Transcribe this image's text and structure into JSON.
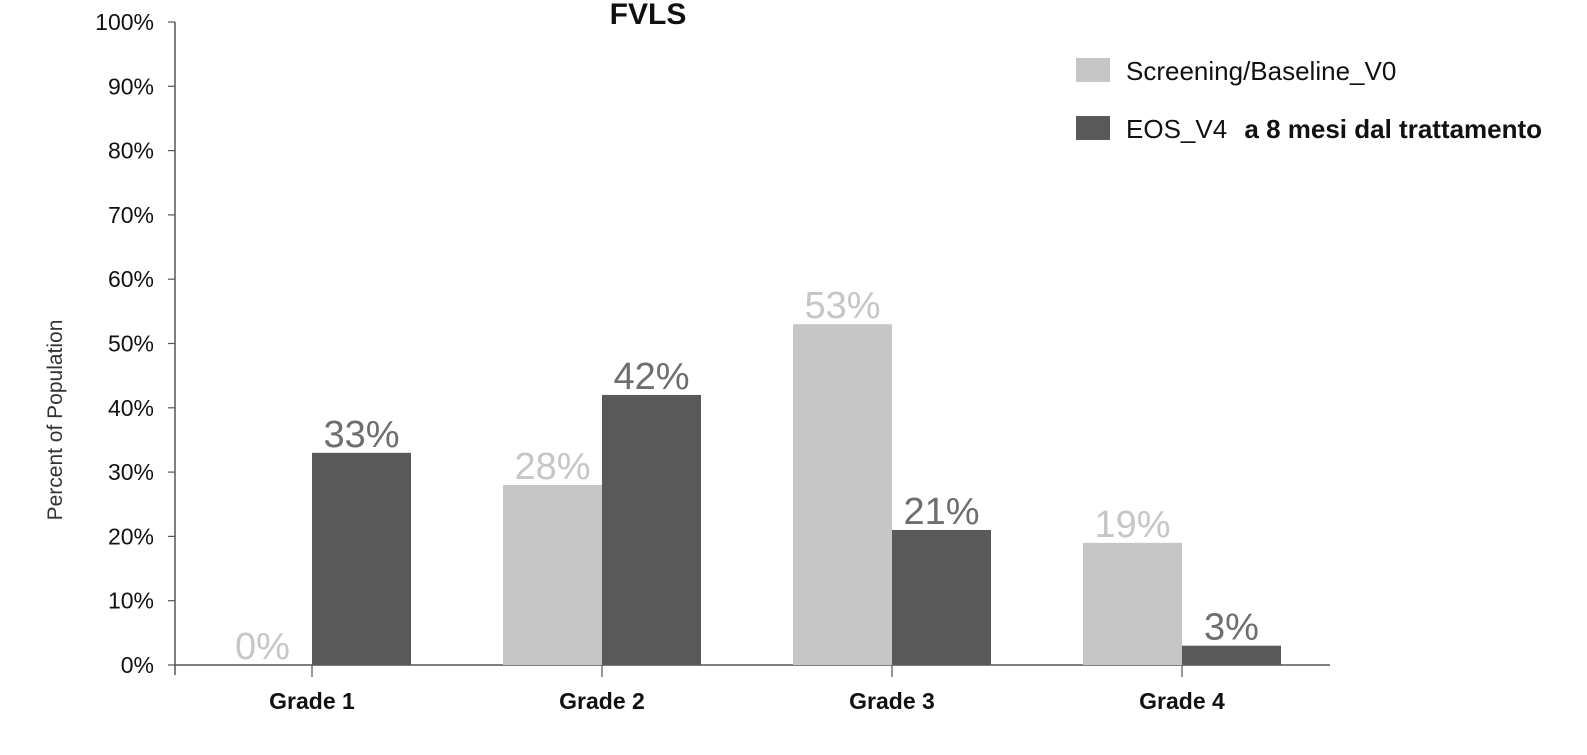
{
  "chart_data": {
    "type": "bar",
    "title": "FVLS",
    "xlabel": "",
    "ylabel": "Percent of Population",
    "ylim": [
      0,
      100
    ],
    "yticks": [
      "0%",
      "10%",
      "20%",
      "30%",
      "40%",
      "50%",
      "60%",
      "70%",
      "80%",
      "90%",
      "100%"
    ],
    "categories": [
      "Grade 1",
      "Grade 2",
      "Grade 3",
      "Grade 4"
    ],
    "series": [
      {
        "name": "Screening/Baseline_V0",
        "name_parts": [
          "Screening/Baseline_V0"
        ],
        "color": "#c6c6c6",
        "label_color": "#c6c6c6",
        "values": [
          0,
          28,
          53,
          19
        ],
        "labels": [
          "0%",
          "28%",
          "53%",
          "19%"
        ]
      },
      {
        "name": "EOS_V4 a 8 mesi dal trattamento",
        "name_parts": [
          "EOS_V4",
          "a 8 mesi dal trattamento"
        ],
        "color": "#595959",
        "label_color": "#6e6e6e",
        "values": [
          33,
          42,
          21,
          3
        ],
        "labels": [
          "33%",
          "42%",
          "21%",
          "3%"
        ]
      }
    ],
    "legend_position": "top-right",
    "grid": false
  }
}
